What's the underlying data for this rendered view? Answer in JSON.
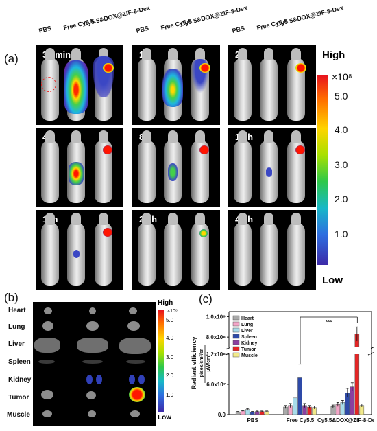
{
  "panel_a": {
    "letter": "(a)",
    "column_labels": [
      "PBS",
      "Free Cy5.5",
      "Cy5.5&DOX@ZIF-8-Dex"
    ],
    "timepoints": [
      "30 min",
      "1 h",
      "2 h",
      "4 h",
      "8 h",
      "12 h",
      "16h",
      "24 h",
      "48 h"
    ],
    "colorbar": {
      "high": "High",
      "low": "Low",
      "exponent": "×10⁸",
      "ticks": [
        "5.0",
        "4.0",
        "3.0",
        "2.0",
        "1.0"
      ]
    }
  },
  "panel_b": {
    "letter": "(b)",
    "organs": [
      "Heart",
      "Lung",
      "Liver",
      "Spleen",
      "Kidney",
      "Tumor",
      "Muscle"
    ],
    "colorbar": {
      "high": "High",
      "low": "Low",
      "exponent": "×10⁸",
      "ticks": [
        "5.0",
        "4.0",
        "3.0",
        "2.0",
        "1.0"
      ]
    }
  },
  "panel_c": {
    "letter": "(c)",
    "chart_data": {
      "type": "bar",
      "ylabel": "Radiant efficiency",
      "yunit_top": "p/sec/cm²/sr",
      "yunit_bottom": "μW/cm²",
      "categories": [
        "PBS",
        "Free Cy5.5",
        "Cy5.5&DOX@ZIF-8-Dex"
      ],
      "y_ticks": [
        "0.0",
        "6.0x10⁷",
        "1.2x10⁸",
        "8.0x10⁸",
        "1.0x10⁹"
      ],
      "axis_break": true,
      "significance": "***",
      "series": [
        {
          "name": "Heart",
          "color": "#a9a9a9",
          "values": [
            5000000.0,
            15000000.0,
            16000000.0
          ],
          "errors": [
            1000000.0,
            3000000.0,
            3000000.0
          ]
        },
        {
          "name": "Lung",
          "color": "#f4a6c8",
          "values": [
            7000000.0,
            18000000.0,
            20000000.0
          ],
          "errors": [
            1000000.0,
            4000000.0,
            4000000.0
          ]
        },
        {
          "name": "Liver",
          "color": "#a8dcea",
          "values": [
            10000000.0,
            33000000.0,
            24000000.0
          ],
          "errors": [
            2000000.0,
            6000000.0,
            4000000.0
          ]
        },
        {
          "name": "Spleen",
          "color": "#2e4aa8",
          "values": [
            5000000.0,
            73000000.0,
            43000000.0
          ],
          "errors": [
            1000000.0,
            27000000.0,
            9000000.0
          ]
        },
        {
          "name": "Kidney",
          "color": "#8b3fa0",
          "values": [
            6000000.0,
            18000000.0,
            55000000.0
          ],
          "errors": [
            1000000.0,
            4000000.0,
            8000000.0
          ]
        },
        {
          "name": "Tumor",
          "color": "#e52525",
          "values": [
            6000000.0,
            15000000.0,
            830000000.0
          ],
          "errors": [
            1000000.0,
            3000000.0,
            70000000.0
          ]
        },
        {
          "name": "Muscle",
          "color": "#f2ea8a",
          "values": [
            6000000.0,
            14000000.0,
            18000000.0
          ],
          "errors": [
            1000000.0,
            3000000.0,
            3000000.0
          ]
        }
      ]
    }
  }
}
